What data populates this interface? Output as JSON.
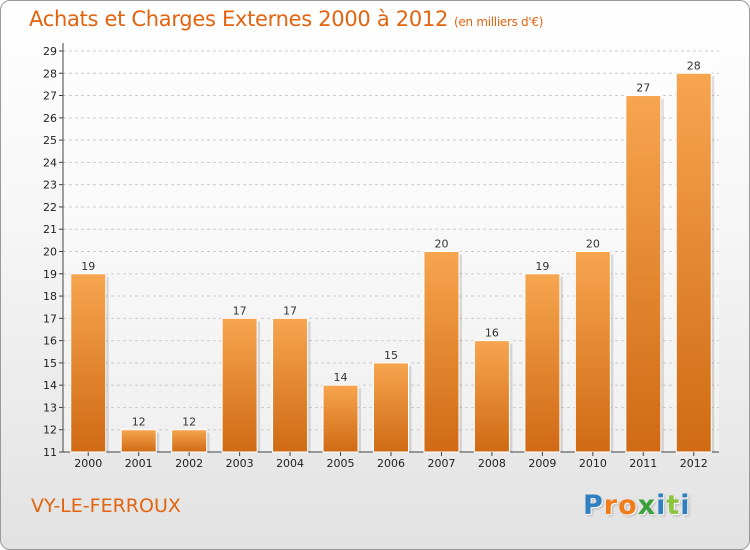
{
  "header": {
    "title": "Achats et Charges Externes 2000 à 2012",
    "subtitle": "(en milliers d'€)"
  },
  "commune": "VY-LE-FERROUX",
  "logo": {
    "letters": [
      "P",
      "r",
      "o",
      "x",
      "i",
      "t",
      "i"
    ],
    "text": "Proxiti"
  },
  "colors": {
    "title": "#e2640f",
    "bar_top": "#f7a54f",
    "bar_bottom": "#d06a14",
    "grid": "#cccccc",
    "logo_letters": [
      "#2f7fc1",
      "#f07d1a",
      "#f07d1a",
      "#3aa13a",
      "#2f7fc1",
      "#8cc63f",
      "#2f7fc1"
    ]
  },
  "chart_data": {
    "type": "bar",
    "title": "Achats et Charges Externes 2000 à 2012",
    "subtitle": "(en milliers d'€)",
    "categories": [
      "2000",
      "2001",
      "2002",
      "2003",
      "2004",
      "2005",
      "2006",
      "2007",
      "2008",
      "2009",
      "2010",
      "2011",
      "2012"
    ],
    "values": [
      19,
      12,
      12,
      17,
      17,
      14,
      15,
      20,
      16,
      19,
      20,
      27,
      28
    ],
    "ylim": [
      11,
      29
    ],
    "yticks": [
      11,
      12,
      13,
      14,
      15,
      16,
      17,
      18,
      19,
      20,
      21,
      22,
      23,
      24,
      25,
      26,
      27,
      28,
      29
    ],
    "grid": true,
    "xlabel": "",
    "ylabel": ""
  }
}
